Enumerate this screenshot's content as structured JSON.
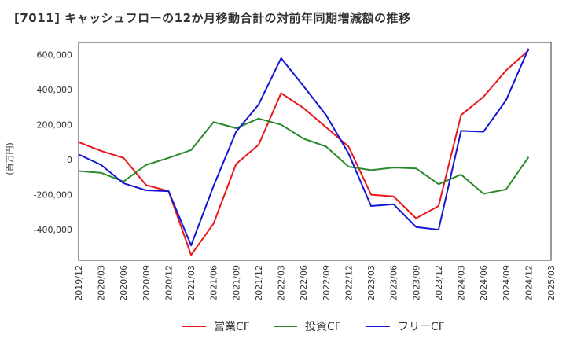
{
  "title": "[7011]  キャッシュフローの12か月移動合計の対前年同期増減額の推移",
  "chart_data": {
    "type": "line",
    "title": "[7011]  キャッシュフローの12か月移動合計の対前年同期増減額の推移",
    "xlabel": "",
    "ylabel": "(百万円)",
    "x": [
      "2019/12",
      "2020/03",
      "2020/06",
      "2020/09",
      "2020/12",
      "2021/03",
      "2021/06",
      "2021/09",
      "2021/12",
      "2022/03",
      "2022/06",
      "2022/09",
      "2022/12",
      "2023/03",
      "2023/06",
      "2023/09",
      "2023/12",
      "2024/03",
      "2024/06",
      "2024/09",
      "2024/12",
      "2025/03"
    ],
    "ylim": [
      -575000,
      670000
    ],
    "yticks": [
      -400000,
      -200000,
      0,
      200000,
      400000,
      600000
    ],
    "ytick_labels": [
      "-400,000",
      "-200,000",
      "0",
      "200,000",
      "400,000",
      "600,000"
    ],
    "grid": true,
    "legend_position": "bottom",
    "series": [
      {
        "name": "営業CF",
        "color": "#e8171b",
        "values": [
          100000,
          50000,
          10000,
          -145000,
          -180000,
          -545000,
          -365000,
          -25000,
          85000,
          380000,
          295000,
          185000,
          75000,
          -200000,
          -210000,
          -335000,
          -265000,
          255000,
          360000,
          510000,
          625000,
          null
        ]
      },
      {
        "name": "投資CF",
        "color": "#2a8a2a",
        "values": [
          -65000,
          -75000,
          -125000,
          -30000,
          10000,
          55000,
          215000,
          180000,
          235000,
          200000,
          120000,
          75000,
          -40000,
          -60000,
          -45000,
          -50000,
          -140000,
          -85000,
          -195000,
          -170000,
          15000,
          null
        ]
      },
      {
        "name": "フリーCF",
        "color": "#1515d6",
        "values": [
          30000,
          -30000,
          -135000,
          -175000,
          -180000,
          -490000,
          -150000,
          160000,
          315000,
          580000,
          420000,
          255000,
          35000,
          -265000,
          -255000,
          -385000,
          -400000,
          165000,
          160000,
          340000,
          635000,
          null
        ]
      }
    ]
  }
}
